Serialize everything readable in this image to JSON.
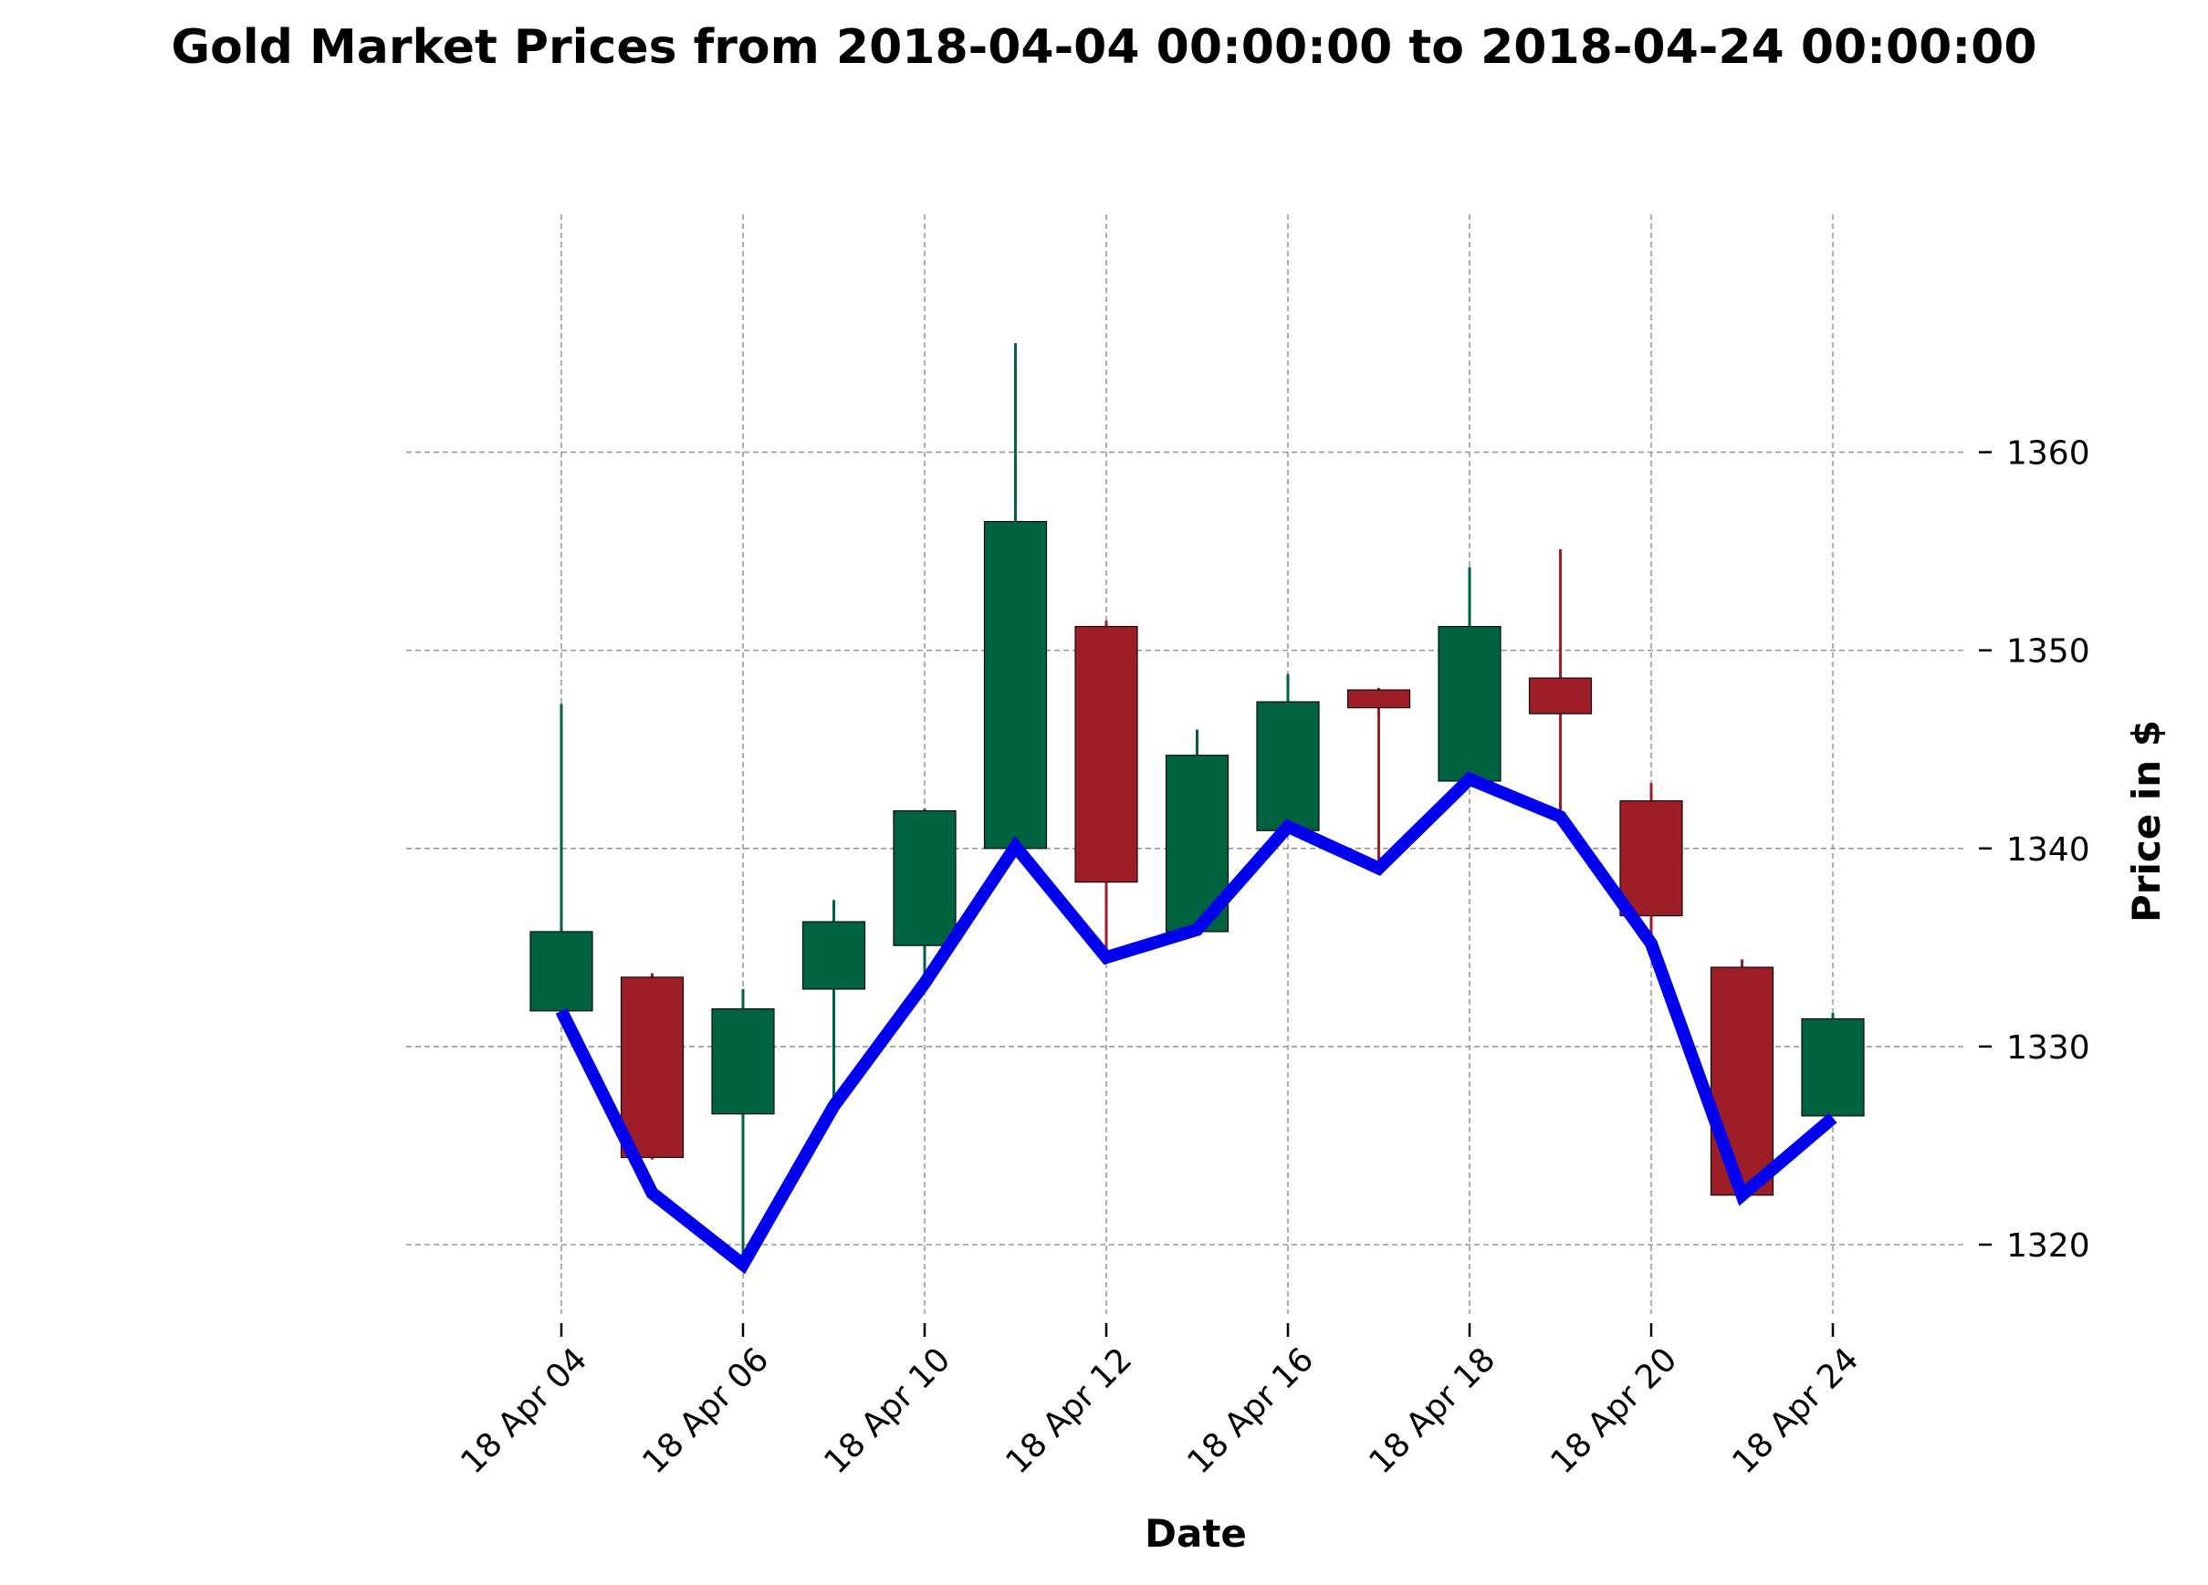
{
  "chart_data": {
    "type": "candlestick",
    "title": "Gold Market Prices from 2018-04-04 00:00:00 to 2018-04-24 00:00:00",
    "xlabel": "Date",
    "ylabel": "Price in $",
    "ylim": [
      1316.5,
      1372
    ],
    "yticks": [
      1320,
      1330,
      1340,
      1350,
      1360
    ],
    "xtick_labels": [
      "18 Apr 04",
      "18 Apr 06",
      "18 Apr 10",
      "18 Apr 12",
      "18 Apr 16",
      "18 Apr 18",
      "18 Apr 20",
      "18 Apr 24"
    ],
    "grid": true,
    "y_axis_side": "right",
    "colors": {
      "up": "#006340",
      "down": "#9e1e27",
      "line": "#0000ee",
      "grid": "#9a9a9a"
    },
    "series": [
      {
        "name": "",
        "type": "ohlc",
        "dates": [
          "2018-04-04",
          "2018-04-05",
          "2018-04-06",
          "2018-04-09",
          "2018-04-10",
          "2018-04-11",
          "2018-04-12",
          "2018-04-13",
          "2018-04-16",
          "2018-04-17",
          "2018-04-18",
          "2018-04-19",
          "2018-04-20",
          "2018-04-23",
          "2018-04-24"
        ],
        "open": [
          1331.8,
          1333.5,
          1326.6,
          1332.9,
          1335.1,
          1340.0,
          1351.2,
          1335.8,
          1340.9,
          1348.0,
          1343.4,
          1348.6,
          1342.4,
          1334.0,
          1326.5
        ],
        "high": [
          1347.3,
          1333.7,
          1332.9,
          1337.4,
          1342.0,
          1365.5,
          1351.5,
          1346.0,
          1348.8,
          1348.1,
          1354.2,
          1355.1,
          1343.3,
          1334.4,
          1331.7
        ],
        "low": [
          1331.8,
          1324.3,
          1319.0,
          1327.4,
          1333.3,
          1340.0,
          1334.8,
          1335.8,
          1340.9,
          1339.2,
          1343.4,
          1341.7,
          1335.2,
          1322.4,
          1326.5
        ],
        "close": [
          1335.8,
          1324.4,
          1331.9,
          1336.3,
          1341.9,
          1356.5,
          1338.3,
          1344.7,
          1347.4,
          1347.1,
          1351.2,
          1346.8,
          1336.6,
          1322.5,
          1331.4
        ]
      },
      {
        "name": "",
        "type": "line",
        "values": [
          1331.8,
          1322.6,
          1319.0,
          1327.0,
          1333.2,
          1340.1,
          1334.5,
          1335.9,
          1341.1,
          1339.0,
          1343.5,
          1341.6,
          1335.2,
          1322.5,
          1326.4
        ]
      }
    ]
  }
}
